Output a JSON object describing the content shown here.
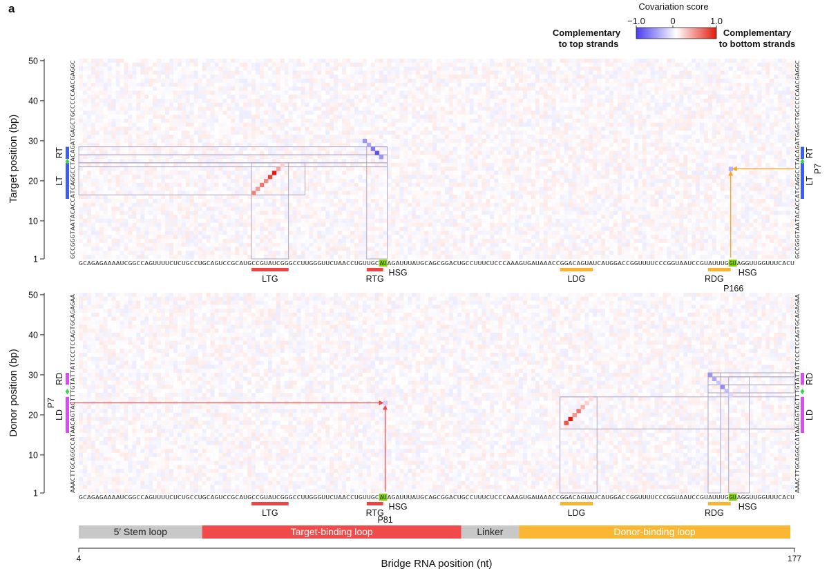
{
  "panel_letter": "a",
  "colorbar": {
    "title": "Covariation score",
    "ticks": [
      "−1.0",
      "0",
      "1.0"
    ],
    "left_label": [
      "Complementary",
      "to top strands"
    ],
    "right_label": [
      "Complementary",
      "to bottom strands"
    ],
    "colors": {
      "negative": "#4a3cf0",
      "neutral": "#ffffff",
      "positive": "#e31a0b"
    }
  },
  "chart_data": [
    {
      "type": "heatmap",
      "name": "target",
      "ylabel": "Target position (bp)",
      "yticks": [
        1,
        10,
        20,
        30,
        40,
        50
      ],
      "ylim": [
        1,
        50
      ],
      "xlim": [
        4,
        177
      ],
      "bridge_sequence": "GCAGAGAAAAUCGGCCAGUUUUCUCUGCCUGCAGUCCGCAUGCCGUAUCGGGCCUUGGGUUCUAACCUGUUGCGUAGAUUUAUGCAGCGGACUGCCUUUCUCCCAAAGUGAUAAACCGGACAGUAUCAUGGACCGGUUUUCCCGGUAAUCCGUAUUUGCAAGGUUGGUUUCACU",
      "left_strand_sequence": "GCCGGGTAATACACCATCAGGCCTACAGATGAGCTGCCCCCAACGAGGC",
      "right_strand_sequence": "GCCGGGTAATACACCATCAGGCCTACAGATGAGCTGCCCCCAACGAGGC",
      "side_labels_left": [
        "RT",
        "LT"
      ],
      "side_labels_right": [
        "RT",
        "LT",
        "P7"
      ],
      "features_below": [
        "LTG",
        "RTG",
        "HSG",
        "LDG",
        "RDG",
        "HSG",
        "P166"
      ],
      "points": [
        {
          "x": 46,
          "y": 17,
          "v": 0.55
        },
        {
          "x": 47,
          "y": 18,
          "v": 0.45
        },
        {
          "x": 48,
          "y": 19,
          "v": 0.6
        },
        {
          "x": 49,
          "y": 20,
          "v": 0.5
        },
        {
          "x": 50,
          "y": 21,
          "v": 0.8
        },
        {
          "x": 51,
          "y": 22,
          "v": 1.0
        },
        {
          "x": 52,
          "y": 23,
          "v": 0.4
        },
        {
          "x": 53,
          "y": 24,
          "v": 0.2
        },
        {
          "x": 73,
          "y": 30,
          "v": -0.55
        },
        {
          "x": 74,
          "y": 29,
          "v": -0.45
        },
        {
          "x": 75,
          "y": 28,
          "v": -0.7
        },
        {
          "x": 76,
          "y": 27,
          "v": -0.9
        },
        {
          "x": 77,
          "y": 26,
          "v": -0.55
        },
        {
          "x": 162,
          "y": 23,
          "v": -0.4
        }
      ],
      "boxes": [
        {
          "x": [
            4,
            78
          ],
          "y": [
            27,
            28
          ]
        },
        {
          "x": [
            4,
            78
          ],
          "y": [
            25,
            26
          ]
        },
        {
          "x": [
            4,
            78
          ],
          "y": [
            24,
            24
          ]
        },
        {
          "x": [
            4,
            58
          ],
          "y": [
            17,
            24
          ]
        },
        {
          "x": [
            46,
            54
          ],
          "y": [
            1,
            24
          ]
        },
        {
          "x": [
            74,
            78
          ],
          "y": [
            1,
            28
          ]
        }
      ],
      "pointer": {
        "label": "P7",
        "from_x": 177,
        "to_x": 162,
        "y": 23,
        "label_x": "P166",
        "color": "#f5a623"
      }
    },
    {
      "type": "heatmap",
      "name": "donor",
      "ylabel": "Donor position (bp)",
      "yticks": [
        1,
        10,
        20,
        30,
        40,
        50
      ],
      "ylim": [
        1,
        50
      ],
      "xlim": [
        4,
        177
      ],
      "bridge_sequence": "GCAGAGAAAAUCGGCCAGUUUUCUCUGCCUGCAGUCCGCAUGCCGUAUCGGGCCUUGGGUUCUAACCUGUUGCGUAGAUUUAUGCAGCGGACUGCCUUUCUCCCAAAGUGAUAAACCGGACAGUAUCAUGGACCGGUUUUCCCGGUAAUCCGUAUUUGCAAGGUUGGUUUCACU",
      "left_strand_sequence": "AAACTTGCAGGCCATAACAGTACTTTGTATTATCCCTCCAGTGCAGAGAA",
      "right_strand_sequence": "AAACTTGCAGGCCATAACAGTACTTTGTATTATCCCTCCAGTGCAGAGAA",
      "side_labels_left": [
        "RD",
        "LD",
        "P7"
      ],
      "side_labels_right": [
        "RD",
        "LD"
      ],
      "features_below": [
        "LTG",
        "RTG",
        "HSG",
        "LDG",
        "RDG",
        "HSG",
        "P81"
      ],
      "points": [
        {
          "x": 122,
          "y": 18,
          "v": 0.75
        },
        {
          "x": 123,
          "y": 19,
          "v": 1.0
        },
        {
          "x": 124,
          "y": 20,
          "v": 0.45
        },
        {
          "x": 125,
          "y": 21,
          "v": 0.6
        },
        {
          "x": 126,
          "y": 22,
          "v": 0.35
        },
        {
          "x": 127,
          "y": 23,
          "v": 0.2
        },
        {
          "x": 128,
          "y": 24,
          "v": 0.15
        },
        {
          "x": 157,
          "y": 30,
          "v": -0.55
        },
        {
          "x": 158,
          "y": 29,
          "v": -0.45
        },
        {
          "x": 159,
          "y": 28,
          "v": -0.3
        },
        {
          "x": 160,
          "y": 27,
          "v": -0.6
        },
        {
          "x": 161,
          "y": 26,
          "v": -0.35
        },
        {
          "x": 162,
          "y": 25,
          "v": -0.2
        },
        {
          "x": 78,
          "y": 23,
          "v": -0.25
        }
      ],
      "boxes": [
        {
          "x": [
            157,
            177
          ],
          "y": [
            30,
            30
          ]
        },
        {
          "x": [
            157,
            177
          ],
          "y": [
            28,
            29
          ]
        },
        {
          "x": [
            157,
            177
          ],
          "y": [
            26,
            27
          ]
        },
        {
          "x": [
            121,
            177
          ],
          "y": [
            17,
            24
          ]
        },
        {
          "x": [
            121,
            129
          ],
          "y": [
            1,
            24
          ]
        },
        {
          "x": [
            157,
            159
          ],
          "y": [
            1,
            30
          ]
        },
        {
          "x": [
            162,
            166
          ],
          "y": [
            1,
            29
          ]
        }
      ],
      "pointer": {
        "label": "P7",
        "from_x": 4,
        "to_x": 78,
        "y": 23,
        "label_x": "P81",
        "color": "#ee4444"
      }
    }
  ],
  "features": [
    {
      "name": "LTG",
      "x": [
        46,
        54
      ],
      "color": "#ee4444"
    },
    {
      "name": "RTG",
      "x": [
        74,
        77
      ],
      "color": "#ee4444"
    },
    {
      "name": "HSG",
      "x": [
        77,
        78
      ],
      "color": "#7cd300",
      "highlight_text": "AU"
    },
    {
      "name": "LDG",
      "x": [
        121,
        128
      ],
      "color": "#fbb432"
    },
    {
      "name": "RDG",
      "x": [
        157,
        159
      ],
      "color": "#fbb432"
    },
    {
      "name": "HSG",
      "x": [
        162,
        166
      ],
      "color": "#fbb432",
      "highlight_text": "GU"
    }
  ],
  "domains": [
    {
      "label": "5′ Stem loop",
      "x": [
        4,
        34
      ],
      "color": "#c8c8c8",
      "text_color": "#222"
    },
    {
      "label": "Target-binding loop",
      "x": [
        34,
        97
      ],
      "color": "#f14a4a",
      "text_color": "#ffffff"
    },
    {
      "label": "Linker",
      "x": [
        97,
        111
      ],
      "color": "#c8c8c8",
      "text_color": "#222"
    },
    {
      "label": "Donor-binding loop",
      "x": [
        111,
        177
      ],
      "color": "#fbb733",
      "text_color": "#ffffff"
    }
  ],
  "xaxis": {
    "label": "Bridge RNA position (nt)",
    "ticks": [
      "4",
      "177"
    ]
  }
}
